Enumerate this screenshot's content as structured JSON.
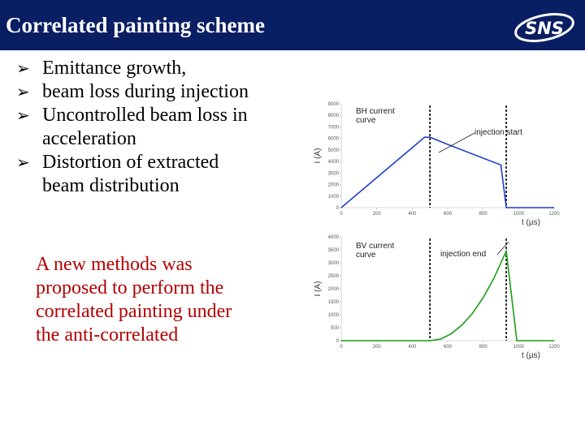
{
  "header": {
    "title": "Correlated painting scheme",
    "logo_text": "SNS",
    "bg_color": "#0a1e63"
  },
  "bullets": [
    {
      "lines": [
        "Emittance growth,"
      ]
    },
    {
      "lines": [
        "beam loss during injection"
      ]
    },
    {
      "lines": [
        "Uncontrolled beam loss in",
        "acceleration"
      ]
    },
    {
      "lines": [
        "Distortion of extracted",
        "beam distribution"
      ]
    }
  ],
  "paragraph": {
    "lines": [
      "A new methods was",
      "proposed to perform the",
      "correlated painting under",
      "the anti-correlated"
    ],
    "color": "#b30000"
  },
  "chart_data": [
    {
      "type": "line",
      "legend_text": [
        "BH current",
        "curve"
      ],
      "annotation": "injection start",
      "xlabel": "t (µs)",
      "ylabel": "I (A)",
      "xlim": [
        0,
        1200
      ],
      "ylim": [
        0,
        9000
      ],
      "xticks": [
        "0",
        "200",
        "400",
        "600",
        "800",
        "1000",
        "1200"
      ],
      "yticks": [
        "0",
        "1000",
        "2000",
        "3000",
        "4000",
        "5000",
        "6000",
        "7000",
        "8000",
        "9000"
      ],
      "color": "#1f3fcc",
      "x": [
        0,
        470,
        500,
        630,
        900,
        930,
        950,
        1200
      ],
      "y": [
        0,
        6100,
        6100,
        5300,
        3700,
        0,
        0,
        0
      ],
      "markers_x": [
        500,
        930
      ]
    },
    {
      "type": "line",
      "legend_text": [
        "BV current",
        "curve"
      ],
      "annotation": "injection end",
      "xlabel": "t (µs)",
      "ylabel": "I (A)",
      "xlim": [
        0,
        1200
      ],
      "ylim": [
        0,
        4000
      ],
      "xticks": [
        "0",
        "200",
        "400",
        "600",
        "800",
        "1000",
        "1200"
      ],
      "yticks": [
        "0",
        "500",
        "1000",
        "1500",
        "2000",
        "2500",
        "3000",
        "3500",
        "4000"
      ],
      "color": "#1a9e1a",
      "x": [
        0,
        500,
        560,
        620,
        680,
        740,
        800,
        860,
        930,
        990,
        1200
      ],
      "y": [
        0,
        0,
        60,
        270,
        600,
        1060,
        1660,
        2400,
        3450,
        0,
        0
      ],
      "markers_x": [
        500,
        930
      ]
    }
  ]
}
